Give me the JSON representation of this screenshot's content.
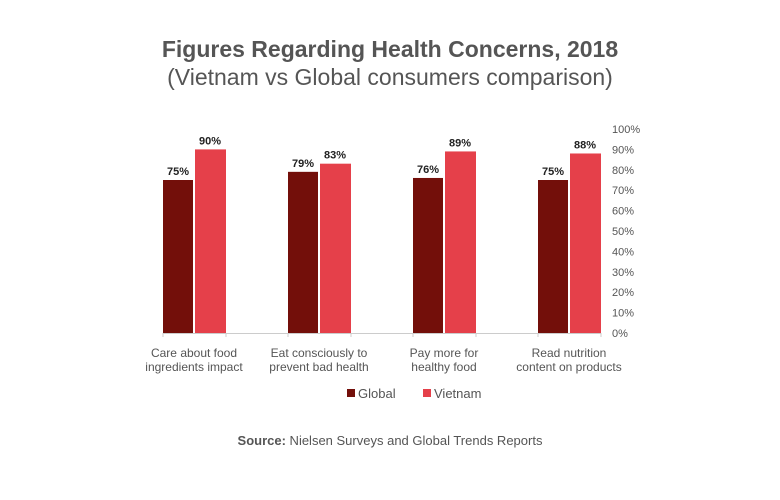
{
  "chart_data": {
    "type": "bar",
    "title": "Figures Regarding Health Concerns, 2018",
    "subtitle": "(Vietnam vs Global consumers comparison)",
    "categories": [
      [
        "Care about food",
        "ingredients impact"
      ],
      [
        "Eat consciously to",
        "prevent bad health"
      ],
      [
        "Pay more for",
        "healthy food"
      ],
      [
        "Read nutrition",
        "content on products"
      ]
    ],
    "series": [
      {
        "name": "Global",
        "values": [
          75,
          79,
          76,
          75
        ],
        "color": "#730f0a"
      },
      {
        "name": "Vietnam",
        "values": [
          90,
          83,
          89,
          88
        ],
        "color": "#e5404a"
      }
    ],
    "ylim": [
      0,
      100
    ],
    "yticks": [
      "0%",
      "10%",
      "20%",
      "30%",
      "40%",
      "50%",
      "60%",
      "70%",
      "80%",
      "90%",
      "100%"
    ],
    "yaxis_position": "right",
    "grid": false,
    "legend_position": "bottom",
    "data_label_suffix": "%"
  },
  "source": {
    "label": "Source:",
    "text": " Nielsen Surveys and Global Trends Reports"
  }
}
